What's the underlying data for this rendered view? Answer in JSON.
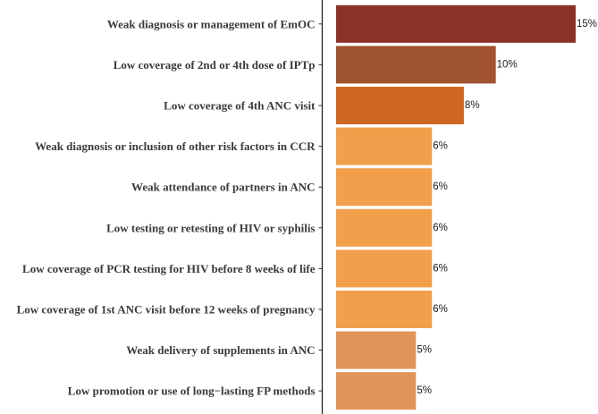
{
  "chart_data": {
    "type": "bar",
    "orientation": "horizontal",
    "title": "",
    "xlabel": "",
    "ylabel": "",
    "grid": false,
    "xlim": [
      0,
      15
    ],
    "categories": [
      "Weak diagnosis or management of EmOC",
      "Low coverage of 2nd or 4th  dose of IPTp",
      "Low coverage of 4th ANC visit",
      "Weak diagnosis or inclusion of other risk factors in CCR",
      "Weak attendance of partners in ANC",
      "Low testing or retesting of HIV or syphilis",
      "Low coverage of PCR testing for HIV before 8 weeks of life",
      "Low coverage of 1st ANC visit before 12 weeks of pregnancy",
      "Weak delivery of supplements in ANC",
      "Low promotion or use of long−lasting FP methods"
    ],
    "values": [
      15,
      10,
      8,
      6,
      6,
      6,
      6,
      6,
      5,
      5
    ],
    "value_labels": [
      "15%",
      "10%",
      "8%",
      "6%",
      "6%",
      "6%",
      "6%",
      "6%",
      "5%",
      "5%"
    ],
    "colors": [
      "#8b3228",
      "#a0532f",
      "#cf6723",
      "#f19f4b",
      "#f19f4b",
      "#f19f4b",
      "#f19f4b",
      "#f19f4b",
      "#df9559",
      "#df9559"
    ]
  }
}
